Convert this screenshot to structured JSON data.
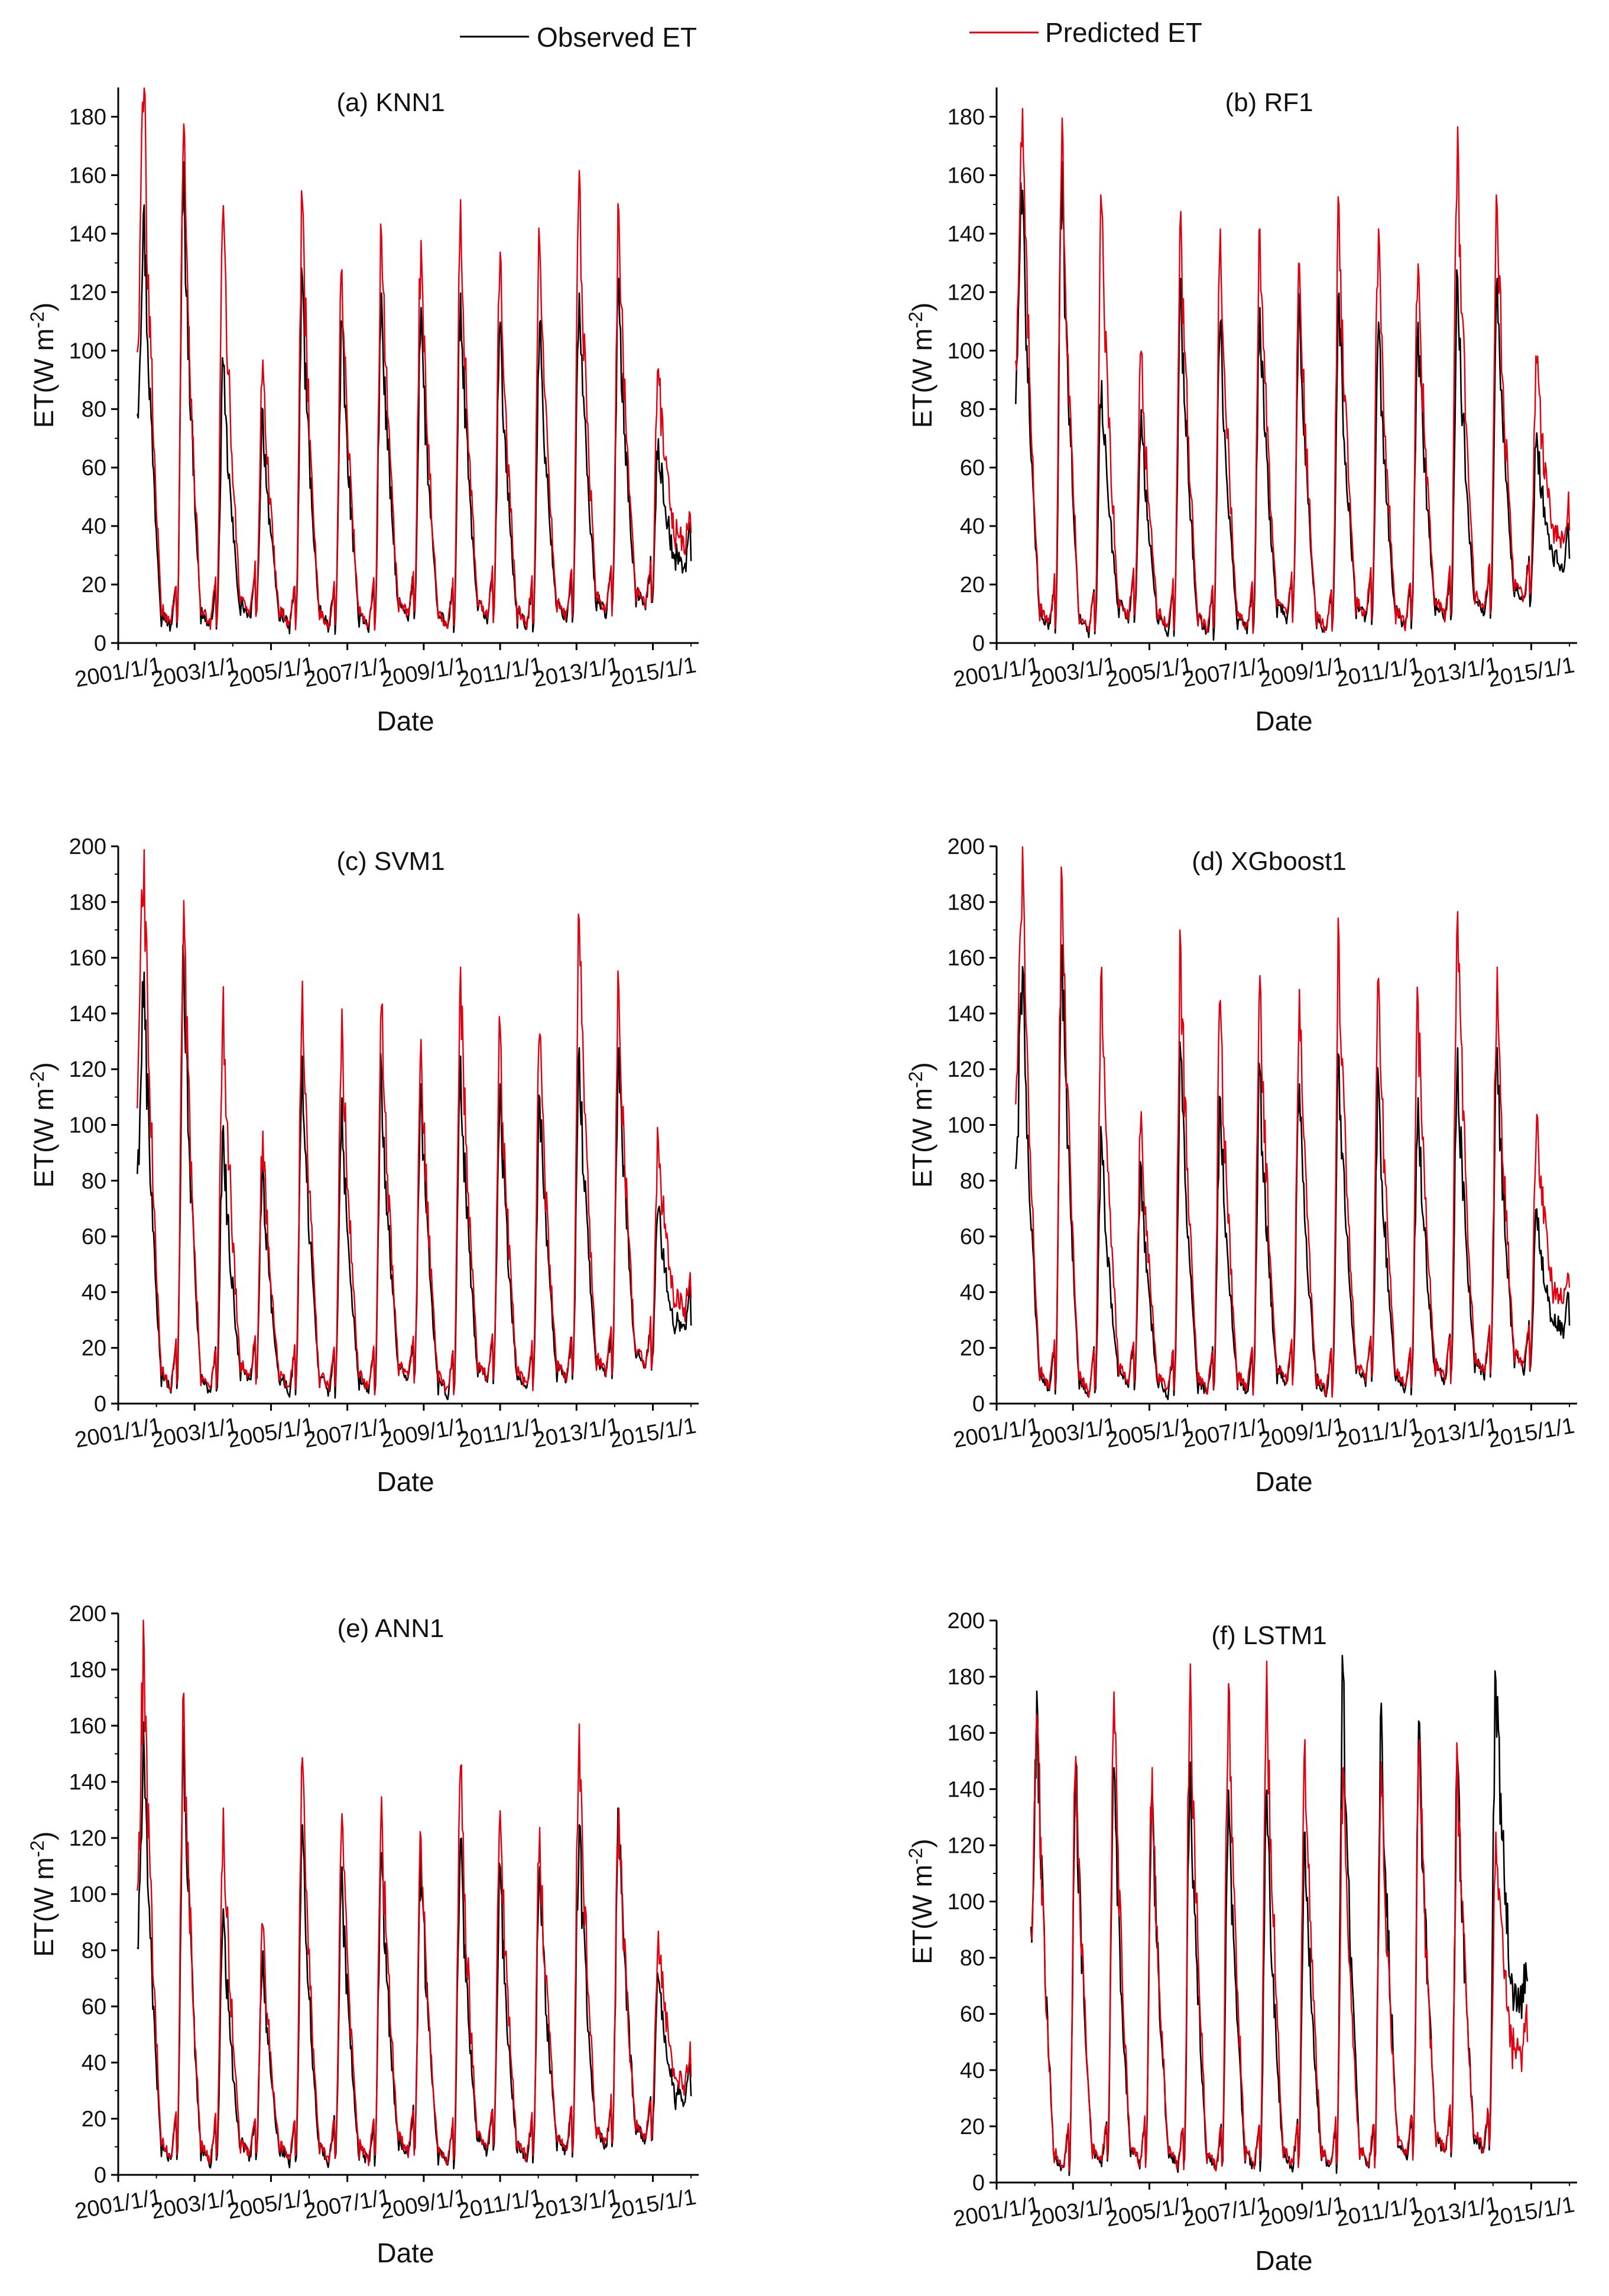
{
  "legend": {
    "observed": {
      "label": "Observed ET",
      "color": "#000000"
    },
    "predicted": {
      "label": "Predicted ET",
      "color": "#e0000f"
    }
  },
  "chart_data": [
    {
      "type": "line",
      "title": "(a) KNN1",
      "xlabel": "Date",
      "ylabel": "ET(W m^-2)",
      "ylim": [
        0,
        190
      ],
      "yticks": [
        0,
        20,
        40,
        60,
        80,
        100,
        120,
        140,
        160,
        180
      ],
      "xlim": [
        2001.0,
        2016.2
      ],
      "xticks": [
        "2001/1/1",
        "2003/1/1",
        "2005/1/1",
        "2007/1/1",
        "2009/1/1",
        "2011/1/1",
        "2013/1/1",
        "2015/1/1"
      ],
      "x_start": 2001.5,
      "x_end": 2016.0,
      "series": [
        {
          "name": "Observed ET",
          "color": "#000000",
          "peaks": [
            150,
            165,
            95,
            80,
            125,
            110,
            120,
            115,
            120,
            110,
            110,
            120,
            125,
            70
          ],
          "troughs": [
            5,
            5,
            8,
            5,
            5,
            5,
            8,
            5,
            8,
            5,
            8,
            10,
            12
          ]
        },
        {
          "name": "Predicted ET",
          "color": "#e0000f",
          "peaks": [
            190,
            178,
            150,
            97,
            151,
            128,
            140,
            138,
            152,
            134,
            136,
            162,
            148,
            94
          ],
          "troughs": [
            6,
            6,
            10,
            6,
            5,
            6,
            9,
            5,
            9,
            6,
            9,
            11,
            13
          ]
        }
      ]
    },
    {
      "type": "line",
      "title": "(b) RF1",
      "xlabel": "Date",
      "ylabel": "ET(W m^-2)",
      "ylim": [
        0,
        190
      ],
      "yticks": [
        0,
        20,
        40,
        60,
        80,
        100,
        120,
        140,
        160,
        180
      ],
      "xlim": [
        2001.0,
        2016.2
      ],
      "xticks": [
        "2001/1/1",
        "2003/1/1",
        "2005/1/1",
        "2007/1/1",
        "2009/1/1",
        "2011/1/1",
        "2013/1/1",
        "2015/1/1"
      ],
      "x_start": 2001.5,
      "x_end": 2016.0,
      "series": [
        {
          "name": "Observed ET",
          "color": "#000000",
          "peaks": [
            155,
            165,
            90,
            80,
            125,
            110,
            115,
            115,
            120,
            110,
            110,
            125,
            125,
            72
          ],
          "troughs": [
            5,
            3,
            8,
            4,
            3,
            4,
            8,
            3,
            8,
            5,
            8,
            10,
            14
          ]
        },
        {
          "name": "Predicted ET",
          "color": "#e0000f",
          "peaks": [
            183,
            180,
            149,
            100,
            148,
            142,
            142,
            130,
            150,
            142,
            130,
            177,
            149,
            96
          ],
          "troughs": [
            6,
            4,
            9,
            5,
            4,
            5,
            9,
            4,
            9,
            6,
            9,
            11,
            15
          ]
        }
      ]
    },
    {
      "type": "line",
      "title": "(c) SVM1",
      "xlabel": "Date",
      "ylabel": "ET(W m^-2)",
      "ylim": [
        0,
        200
      ],
      "yticks": [
        0,
        20,
        40,
        60,
        80,
        100,
        120,
        140,
        160,
        180,
        200
      ],
      "xlim": [
        2001.0,
        2016.2
      ],
      "xticks": [
        "2001/1/1",
        "2003/1/1",
        "2005/1/1",
        "2007/1/1",
        "2009/1/1",
        "2011/1/1",
        "2013/1/1",
        "2015/1/1"
      ],
      "x_start": 2001.5,
      "x_end": 2016.0,
      "series": [
        {
          "name": "Observed ET",
          "color": "#000000",
          "peaks": [
            155,
            160,
            100,
            85,
            125,
            110,
            120,
            115,
            125,
            115,
            110,
            128,
            128,
            70
          ],
          "troughs": [
            5,
            4,
            8,
            4,
            4,
            4,
            8,
            3,
            8,
            5,
            8,
            10,
            13
          ]
        },
        {
          "name": "Predicted ET",
          "color": "#e0000f",
          "peaks": [
            199,
            181,
            150,
            98,
            152,
            142,
            143,
            131,
            157,
            135,
            133,
            174,
            149,
            94
          ],
          "troughs": [
            6,
            5,
            9,
            5,
            5,
            5,
            9,
            4,
            9,
            6,
            9,
            11,
            14
          ]
        }
      ]
    },
    {
      "type": "line",
      "title": "(d) XGboost1",
      "xlabel": "Date",
      "ylabel": "ET(W m^-2)",
      "ylim": [
        0,
        200
      ],
      "yticks": [
        0,
        20,
        40,
        60,
        80,
        100,
        120,
        140,
        160,
        180,
        200
      ],
      "xlim": [
        2001.0,
        2016.2
      ],
      "xticks": [
        "2001/1/1",
        "2003/1/1",
        "2005/1/1",
        "2007/1/1",
        "2009/1/1",
        "2011/1/1",
        "2013/1/1",
        "2015/1/1"
      ],
      "x_start": 2001.5,
      "x_end": 2016.0,
      "series": [
        {
          "name": "Observed ET",
          "color": "#000000",
          "peaks": [
            157,
            165,
            95,
            85,
            125,
            110,
            120,
            115,
            125,
            115,
            110,
            128,
            128,
            70
          ],
          "troughs": [
            5,
            3,
            7,
            3,
            3,
            4,
            7,
            3,
            8,
            5,
            8,
            10,
            12
          ]
        },
        {
          "name": "Predicted ET",
          "color": "#e0000f",
          "peaks": [
            200,
            188,
            157,
            105,
            164,
            145,
            154,
            149,
            167,
            153,
            144,
            177,
            157,
            104
          ],
          "troughs": [
            6,
            4,
            8,
            4,
            4,
            5,
            8,
            4,
            9,
            6,
            9,
            11,
            13
          ]
        }
      ]
    },
    {
      "type": "line",
      "title": "(e) ANN1",
      "xlabel": "Date",
      "ylabel": "ET(W m^-2)",
      "ylim": [
        0,
        200
      ],
      "yticks": [
        0,
        20,
        40,
        60,
        80,
        100,
        120,
        140,
        160,
        180,
        200
      ],
      "xlim": [
        2001.0,
        2016.2
      ],
      "xticks": [
        "2001/1/1",
        "2003/1/1",
        "2005/1/1",
        "2007/1/1",
        "2009/1/1",
        "2011/1/1",
        "2013/1/1",
        "2015/1/1"
      ],
      "x_start": 2001.5,
      "x_end": 2016.0,
      "series": [
        {
          "name": "Observed ET",
          "color": "#000000",
          "peaks": [
            150,
            160,
            95,
            80,
            125,
            110,
            115,
            115,
            120,
            110,
            110,
            125,
            130,
            70
          ],
          "troughs": [
            5,
            4,
            6,
            4,
            4,
            4,
            7,
            3,
            8,
            5,
            8,
            10,
            12
          ]
        },
        {
          "name": "Predicted ET",
          "color": "#e0000f",
          "peaks": [
            187,
            172,
            131,
            89,
            149,
            129,
            135,
            120,
            146,
            130,
            124,
            161,
            131,
            87
          ],
          "troughs": [
            6,
            5,
            7,
            5,
            5,
            5,
            8,
            4,
            9,
            6,
            9,
            11,
            13
          ]
        }
      ]
    },
    {
      "type": "line",
      "title": "(f) LSTM1",
      "xlabel": "Date",
      "ylabel": "ET(W m^-2)",
      "ylim": [
        0,
        200
      ],
      "yticks": [
        0,
        20,
        40,
        60,
        80,
        100,
        120,
        140,
        160,
        180,
        200
      ],
      "xlim": [
        2001.0,
        2016.2
      ],
      "xticks": [
        "2001/1/1",
        "2003/1/1",
        "2005/1/1",
        "2007/1/1",
        "2009/1/1",
        "2011/1/1",
        "2013/1/1",
        "2015/1/1"
      ],
      "x_start": 2001.9,
      "x_end": 2014.9,
      "series": [
        {
          "name": "Observed ET",
          "color": "#000000",
          "peaks": [
            167,
            150,
            148,
            140,
            150,
            140,
            140,
            125,
            182,
            171,
            164,
            150,
            179
          ],
          "troughs": [
            4,
            6,
            6,
            5,
            4,
            5,
            5,
            5,
            6,
            9,
            10,
            11
          ]
        },
        {
          "name": "Predicted ET",
          "color": "#e0000f",
          "peaks": [
            162,
            152,
            175,
            148,
            185,
            178,
            186,
            158,
            148,
            150,
            158,
            150,
            125
          ],
          "troughs": [
            5,
            7,
            7,
            6,
            5,
            6,
            6,
            6,
            7,
            10,
            11,
            12
          ]
        }
      ]
    }
  ]
}
